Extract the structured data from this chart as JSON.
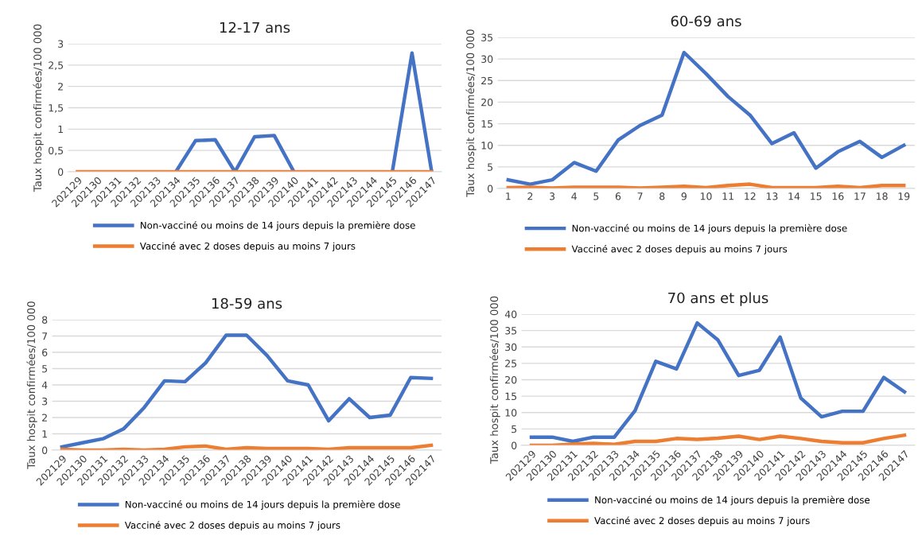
{
  "chart_data": [
    {
      "type": "line",
      "title": "12-17 ans",
      "ylabel": "Taux hospit confirmées/100 000",
      "categories": [
        "202129",
        "202130",
        "202131",
        "202132",
        "202133",
        "202134",
        "202135",
        "202136",
        "202137",
        "202138",
        "202139",
        "202140",
        "202141",
        "202142",
        "202143",
        "202144",
        "202145",
        "202146",
        "202147"
      ],
      "ylim": [
        0,
        3
      ],
      "yticks": [
        0,
        {
          "value": 0.5,
          "label": "0,5"
        },
        1,
        {
          "value": 1.5,
          "label": "1,5"
        },
        2,
        {
          "value": 2.5,
          "label": "2,5"
        },
        3
      ],
      "grid": "y",
      "legend": "bottom",
      "marker": "none",
      "series": [
        {
          "name": "Non-vacciné ou moins de 14 jours depuis la première dose",
          "color": "#4472c4",
          "values": [
            null,
            null,
            null,
            null,
            null,
            0,
            0.73,
            0.75,
            0,
            0.82,
            0.85,
            0,
            null,
            null,
            null,
            null,
            0,
            2.78,
            0
          ]
        },
        {
          "name": "Vacciné avec 2 doses depuis au moins 7 jours",
          "color": "#ed7d31",
          "values": [
            0,
            0,
            0,
            0,
            0,
            0,
            0,
            0,
            0,
            0,
            0,
            0,
            0,
            0,
            0,
            0,
            0,
            0,
            0
          ]
        }
      ]
    },
    {
      "type": "line",
      "title": "60-69 ans",
      "ylabel": "Taux hospit confirmées/100 000",
      "categories": [
        "1",
        "2",
        "3",
        "4",
        "5",
        "6",
        "7",
        "8",
        "9",
        "10",
        "11",
        "12",
        "13",
        "14",
        "15",
        "16",
        "17",
        "18",
        "19"
      ],
      "ylim": [
        0,
        35
      ],
      "yticks": [
        0,
        5,
        10,
        15,
        20,
        25,
        30,
        35
      ],
      "grid": "y",
      "legend": "bottom",
      "marker": "none",
      "series": [
        {
          "name": "Non-vacciné ou moins de 14 jours depuis la première dose",
          "color": "#4472c4",
          "values": [
            2,
            1,
            2,
            6,
            4,
            11.2,
            14.6,
            17,
            31.5,
            26.6,
            21.3,
            17,
            10.4,
            12.9,
            4.7,
            8.5,
            10.9,
            7.2,
            10
          ]
        },
        {
          "name": "Vacciné avec 2 doses depuis au moins 7 jours",
          "color": "#ed7d31",
          "values": [
            0.2,
            0.3,
            0.1,
            0.3,
            0.3,
            0.3,
            0.1,
            0.3,
            0.5,
            0.2,
            0.7,
            1,
            0.2,
            0.2,
            0.2,
            0.5,
            0.2,
            0.7,
            0.7
          ]
        }
      ]
    },
    {
      "type": "line",
      "title": "18-59 ans",
      "ylabel": "Taux hospit confirmées/100 000",
      "categories": [
        "202129",
        "202130",
        "202131",
        "202132",
        "202133",
        "202134",
        "202135",
        "202136",
        "202137",
        "202138",
        "202139",
        "202140",
        "202141",
        "202142",
        "202143",
        "202144",
        "202145",
        "202146",
        "202147"
      ],
      "ylim": [
        0,
        8
      ],
      "yticks": [
        0,
        1,
        2,
        3,
        4,
        5,
        6,
        7,
        8
      ],
      "grid": "y",
      "legend": "bottom",
      "marker": "none",
      "series": [
        {
          "name": "Non-vacciné ou moins de 14 jours depuis la première dose",
          "color": "#4472c4",
          "values": [
            0.2,
            0.45,
            0.7,
            1.3,
            2.6,
            4.25,
            4.2,
            5.35,
            7.05,
            7.05,
            5.8,
            4.25,
            4.0,
            1.8,
            3.15,
            2.0,
            2.15,
            4.45,
            4.4
          ]
        },
        {
          "name": "Vacciné avec 2 doses depuis au moins 7 jours",
          "color": "#ed7d31",
          "values": [
            0.05,
            0,
            0,
            0.05,
            0,
            0.05,
            0.2,
            0.25,
            0.05,
            0.15,
            0.1,
            0.1,
            0.1,
            0.05,
            0.15,
            0.15,
            0.15,
            0.15,
            0.3
          ]
        }
      ]
    },
    {
      "type": "line",
      "title": "70 ans et plus",
      "ylabel": "Taux hospit confirmées/100 000",
      "categories": [
        "202129",
        "202130",
        "202131",
        "202132",
        "202133",
        "202134",
        "202135",
        "202136",
        "202137",
        "202138",
        "202139",
        "202140",
        "202141",
        "202142",
        "202143",
        "202144",
        "202145",
        "202146",
        "202147"
      ],
      "ylim": [
        0,
        40
      ],
      "yticks": [
        0,
        5,
        10,
        15,
        20,
        25,
        30,
        35,
        40
      ],
      "grid": "y",
      "legend": "bottom",
      "marker": "none",
      "series": [
        {
          "name": "Non-vacciné ou moins de 14 jours depuis la première dose",
          "color": "#4472c4",
          "values": [
            2.5,
            2.5,
            1.2,
            2.5,
            2.5,
            10.6,
            25.6,
            23.3,
            37.3,
            32.1,
            21.3,
            22.9,
            33,
            14.4,
            8.7,
            10.4,
            10.4,
            20.7,
            16.3
          ]
        },
        {
          "name": "Vacciné avec 2 doses depuis au moins 7 jours",
          "color": "#ed7d31",
          "values": [
            0,
            0,
            0.4,
            0.6,
            0.3,
            1.2,
            1.2,
            2.1,
            1.8,
            2.2,
            2.8,
            1.8,
            2.8,
            2.1,
            1.2,
            0.8,
            0.8,
            2.1,
            3.1
          ]
        }
      ]
    }
  ]
}
